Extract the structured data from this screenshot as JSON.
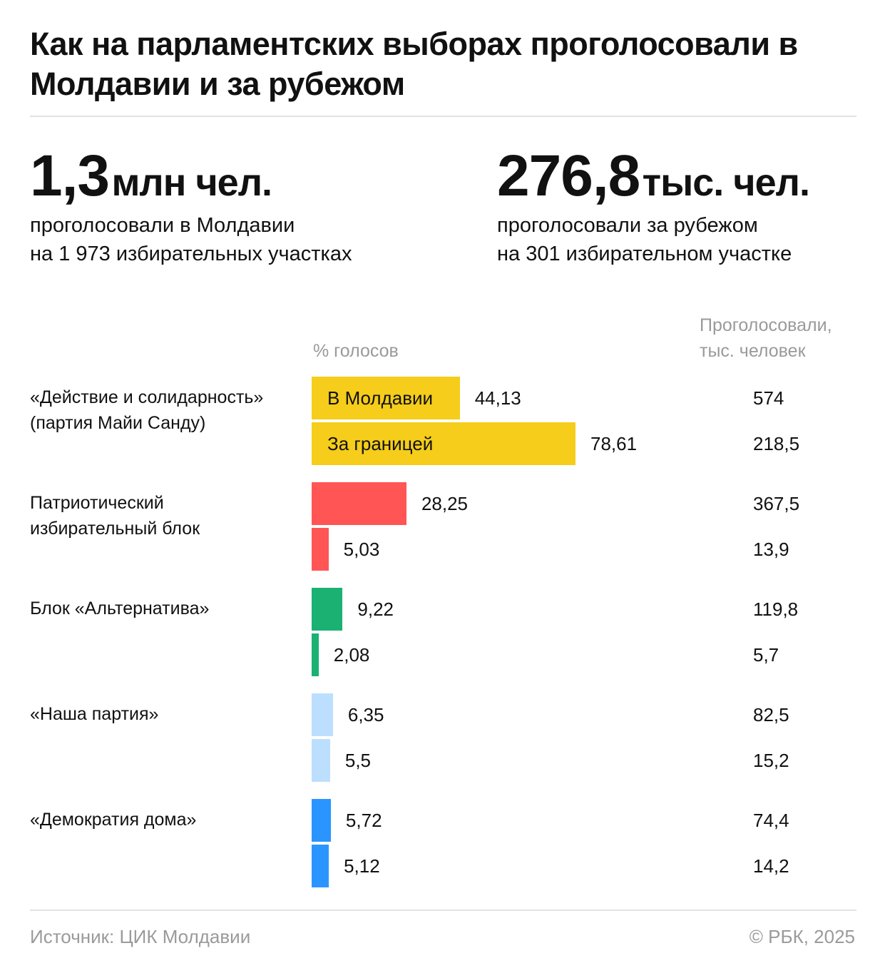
{
  "title": "Как на парламентских выборах проголосовали в Молдавии и за рубежом",
  "stats": [
    {
      "number": "1,3",
      "unit": "млн чел.",
      "line1": "проголосовали в Молдавии",
      "line2": "на 1 973 избирательных участках"
    },
    {
      "number": "276,8",
      "unit": "тыс. чел.",
      "line1": "проголосовали за рубежом",
      "line2": "на 301 избирательном участке"
    }
  ],
  "footer": {
    "source": "Источник: ЦИК Молдавии",
    "copyright": "© РБК, 2025"
  },
  "chart_data": {
    "type": "bar",
    "orientation": "horizontal",
    "xlabel": "% голосов",
    "count_header": "Проголосовали, тыс. человек",
    "count_header_line1": "Проголосовали,",
    "count_header_line2": "тыс. человек",
    "series_labels": [
      "В Молдавии",
      "За границей"
    ],
    "categories": [
      "«Действие и солидарность» (партия Майи Санду)",
      "Патриотический избирательный блок",
      "Блок «Альтернатива»",
      "«Наша партия»",
      "«Демократия дома»"
    ],
    "category_lines": [
      [
        "«Действие и солидарность»",
        "(партия Майи Санду)"
      ],
      [
        "Патриотический",
        "избирательный блок"
      ],
      [
        "Блок «Альтернатива»"
      ],
      [
        "«Наша партия»"
      ],
      [
        "«Демократия дома»"
      ]
    ],
    "colors": [
      "#F5CD1A",
      "#FF5555",
      "#1AB173",
      "#BDDFFF",
      "#2B95FF"
    ],
    "series": [
      {
        "name": "В Молдавии",
        "values": [
          44.13,
          28.25,
          9.22,
          6.35,
          5.72
        ],
        "labels": [
          "44,13",
          "28,25",
          "9,22",
          "6,35",
          "5,72"
        ],
        "counts": [
          "574",
          "367,5",
          "119,8",
          "82,5",
          "74,4"
        ]
      },
      {
        "name": "За границей",
        "values": [
          78.61,
          5.03,
          2.08,
          5.5,
          5.12
        ],
        "labels": [
          "78,61",
          "5,03",
          "2,08",
          "5,5",
          "5,12"
        ],
        "counts": [
          "218,5",
          "13,9",
          "5,7",
          "15,2",
          "14,2"
        ]
      }
    ]
  }
}
